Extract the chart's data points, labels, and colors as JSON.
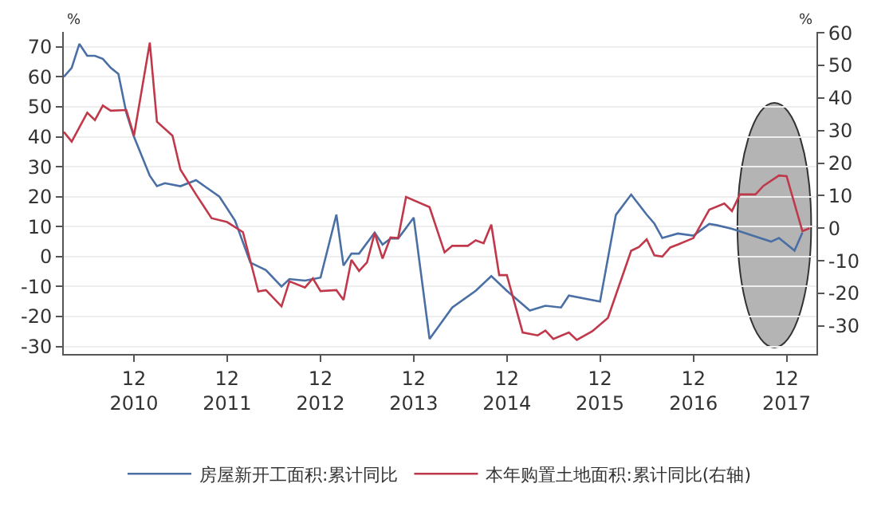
{
  "chart_data": {
    "type": "line",
    "ylabel": "%",
    "y2label": "%",
    "xlim": [
      "2010-03-01",
      "2018-03-28"
    ],
    "xticks": [
      {
        "value": "2010-12",
        "label": "12\n2010"
      },
      {
        "value": "2011-12",
        "label": "12\n2011"
      },
      {
        "value": "2012-12",
        "label": "12\n2012"
      },
      {
        "value": "2013-12",
        "label": "12\n2013"
      },
      {
        "value": "2014-12",
        "label": "12\n2014"
      },
      {
        "value": "2015-12",
        "label": "12\n2015"
      },
      {
        "value": "2016-12",
        "label": "12\n2016"
      },
      {
        "value": "2017-12",
        "label": "12\n2017"
      }
    ],
    "ylim": [
      -32.5,
      75
    ],
    "yticks": [
      -30,
      -20,
      -10,
      0,
      10,
      20,
      30,
      40,
      50,
      60,
      70
    ],
    "y2lim": [
      -38.6,
      60.3
    ],
    "y2ticks": [
      -30,
      -20,
      -10,
      0,
      10,
      20,
      30,
      40,
      50,
      60
    ],
    "grid": "y",
    "legend": "bottom",
    "line_style": "solid",
    "marker": "none",
    "series": [
      {
        "name": "房屋新开工面积:累计同比",
        "color": "#4a6fa5",
        "x": [
          "2010-03",
          "2010-04",
          "2010-05",
          "2010-06",
          "2010-07",
          "2010-08",
          "2010-09",
          "2010-10",
          "2010-11",
          "2010-12",
          "2011-02",
          "2011-03",
          "2011-04",
          "2011-06",
          "2011-08",
          "2011-11",
          "2012-01",
          "2012-03",
          "2012-05",
          "2012-07",
          "2012-08",
          "2012-10",
          "2012-12",
          "2013-02",
          "2013-03",
          "2013-04",
          "2013-05",
          "2013-07",
          "2013-08",
          "2013-09",
          "2013-10",
          "2013-12",
          "2014-02",
          "2014-05",
          "2014-08",
          "2014-10",
          "2014-12",
          "2015-03",
          "2015-05",
          "2015-07",
          "2015-08",
          "2015-12",
          "2016-02",
          "2016-04",
          "2016-06",
          "2016-07",
          "2016-08",
          "2016-10",
          "2016-12",
          "2017-02",
          "2017-03",
          "2017-05",
          "2017-10",
          "2017-11",
          "2018-01",
          "2018-02"
        ],
        "values": [
          60,
          63,
          71,
          67,
          67,
          66,
          63,
          61,
          48,
          40,
          27,
          23.5,
          24.5,
          23.5,
          25.5,
          20,
          12,
          -2,
          -4.5,
          -10,
          -7.5,
          -8,
          -7,
          14,
          -3,
          1,
          1,
          8,
          4,
          6,
          6,
          13,
          -27.5,
          -17,
          -11.4,
          -6.5,
          -11.4,
          -18,
          -16.4,
          -17,
          -13,
          -15,
          13.9,
          20.7,
          14,
          11,
          6.2,
          7.7,
          7,
          10.9,
          10.5,
          9.3,
          5,
          6.2,
          2,
          8
        ]
      },
      {
        "name": "本年购置土地面积:累计同比(右轴)",
        "color": "#c0394b",
        "axis": "y2",
        "x": [
          "2010-03",
          "2010-04",
          "2010-06",
          "2010-07",
          "2010-08",
          "2010-09",
          "2010-11",
          "2010-12",
          "2011-02",
          "2011-03",
          "2011-05",
          "2011-06",
          "2011-08",
          "2011-10",
          "2011-12",
          "2012-02",
          "2012-04",
          "2012-05",
          "2012-07",
          "2012-08",
          "2012-10",
          "2012-11",
          "2012-12",
          "2013-02",
          "2013-03",
          "2013-04",
          "2013-05",
          "2013-06",
          "2013-07",
          "2013-08",
          "2013-09",
          "2013-10",
          "2013-11",
          "2014-02",
          "2014-04",
          "2014-05",
          "2014-07",
          "2014-08",
          "2014-09",
          "2014-10",
          "2014-11",
          "2014-12",
          "2015-02",
          "2015-04",
          "2015-05",
          "2015-06",
          "2015-08",
          "2015-09",
          "2015-11",
          "2016-01",
          "2016-04",
          "2016-05",
          "2016-06",
          "2016-07",
          "2016-08",
          "2016-09",
          "2016-10",
          "2016-12",
          "2017-02",
          "2017-04",
          "2017-05",
          "2017-06",
          "2017-08",
          "2017-09",
          "2017-11",
          "2017-12",
          "2018-02",
          "2018-03"
        ],
        "values": [
          29.6,
          26.6,
          35.5,
          33.2,
          37.7,
          36.1,
          36.3,
          28.4,
          57,
          32.7,
          28.4,
          18,
          10.4,
          3.1,
          1.9,
          -1.2,
          -19.4,
          -19,
          -24,
          -16.3,
          -18.2,
          -15.4,
          -19.3,
          -19,
          -22,
          -9.7,
          -13.1,
          -10.5,
          -1.5,
          -9.3,
          -2.8,
          -3,
          9.6,
          6.5,
          -7.4,
          -5.4,
          -5.4,
          -3.7,
          -4.6,
          1.1,
          -14.4,
          -14.4,
          -32,
          -32.9,
          -31.4,
          -34,
          -32,
          -34.3,
          -31.6,
          -27.5,
          -6.9,
          -5.8,
          -3.4,
          -8.3,
          -8.7,
          -5.9,
          -5,
          -3,
          5.7,
          7.6,
          5.3,
          10.4,
          10.4,
          13,
          16.2,
          16,
          -0.9,
          0
        ]
      }
    ]
  }
}
